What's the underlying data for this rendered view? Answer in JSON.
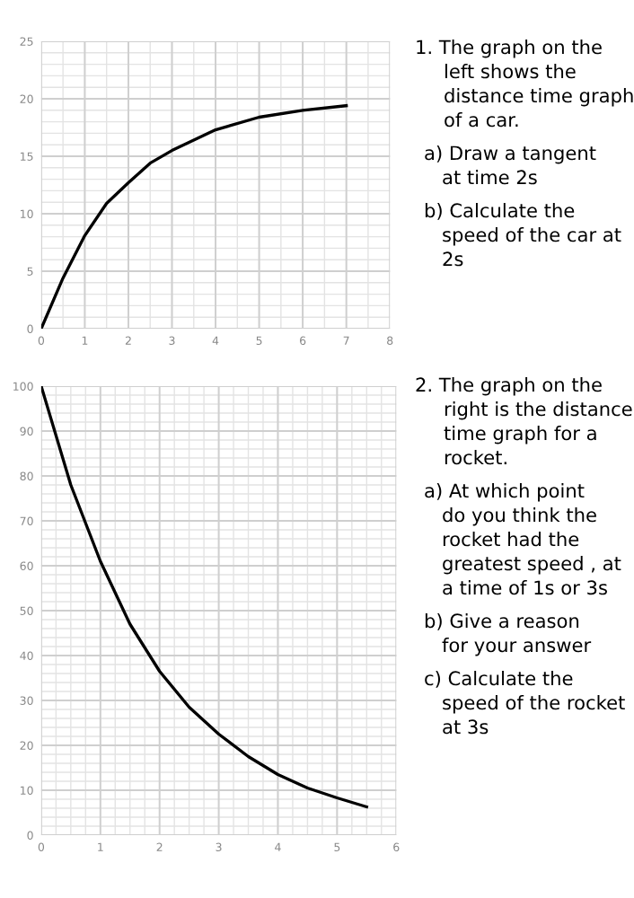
{
  "chart_data": [
    {
      "type": "line",
      "x": [
        0,
        0.5,
        1,
        1.5,
        2,
        2.5,
        3,
        4,
        5,
        6,
        7
      ],
      "values": [
        0,
        4.4,
        8.1,
        10.9,
        12.7,
        14.4,
        15.5,
        17.3,
        18.4,
        19.0,
        19.4
      ],
      "color": "#000000",
      "xlim": [
        0,
        8
      ],
      "xticks": [
        0,
        1,
        2,
        3,
        4,
        5,
        6,
        7,
        8
      ],
      "ylim": [
        0,
        25
      ],
      "yticks": [
        0,
        5,
        10,
        15,
        20,
        25
      ],
      "grid": true,
      "marker": "none",
      "line_style": "solid",
      "annotations": [
        "1. The graph on the left shows the distance time graph of a car.",
        "a) Draw a tangent at time 2s",
        "b) Calculate the speed of the car at 2s"
      ]
    },
    {
      "type": "line",
      "x": [
        0,
        0.5,
        1,
        1.5,
        2,
        2.5,
        3,
        3.5,
        4,
        4.5,
        5,
        5.5
      ],
      "values": [
        100,
        78,
        61,
        47,
        36.5,
        28.5,
        22.5,
        17.5,
        13.5,
        10.5,
        8.3,
        6.3
      ],
      "color": "#000000",
      "xlim": [
        0,
        6
      ],
      "xticks": [
        0,
        1,
        2,
        3,
        4,
        5,
        6
      ],
      "ylim": [
        0,
        100
      ],
      "yticks": [
        0,
        10,
        20,
        30,
        40,
        50,
        60,
        70,
        80,
        90,
        100
      ],
      "grid": true,
      "marker": "none",
      "line_style": "solid",
      "annotations": [
        "2. The graph on the right is the distance time graph for a rocket.",
        "a) At which point do you think the rocket had the greatest speed , at a time of 1s or 3s",
        "b) Give a reason for your answer",
        "c) Calculate the speed of the rocket at 3s"
      ]
    }
  ]
}
